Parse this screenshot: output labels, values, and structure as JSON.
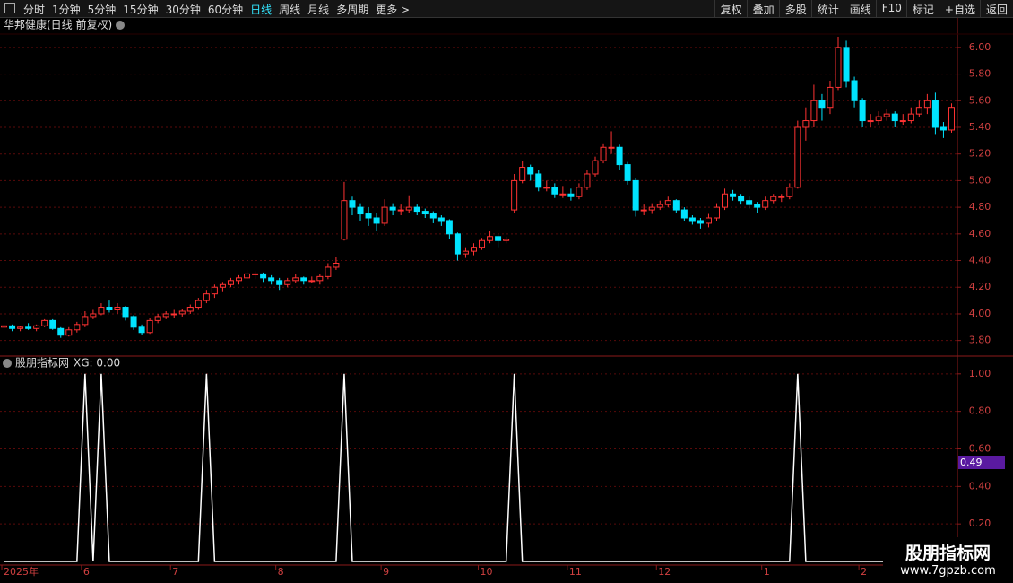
{
  "toolbar": {
    "left": [
      "分时",
      "1分钟",
      "5分钟",
      "15分钟",
      "30分钟",
      "60分钟",
      "日线",
      "周线",
      "月线",
      "多周期",
      "更多 >"
    ],
    "active": "日线",
    "right": [
      "复权",
      "叠加",
      "多股",
      "统计",
      "画线",
      "F10",
      "标记",
      "+自选",
      "返回"
    ]
  },
  "chart_data": [
    {
      "type": "candlestick",
      "title": "华邦健康(日线 前复权)",
      "up_color": "#ff3232",
      "down_color": "#00e4ff",
      "grid": true,
      "ylim": [
        3.69,
        6.1
      ],
      "yticks": [
        {
          "value": 3.8,
          "label": "3.80"
        },
        {
          "value": 4,
          "label": "4.00"
        },
        {
          "value": 4.2,
          "label": "4.20"
        },
        {
          "value": 4.4,
          "label": "4.40"
        },
        {
          "value": 4.6,
          "label": "4.60"
        },
        {
          "value": 4.8,
          "label": "4.80"
        },
        {
          "value": 5,
          "label": "5.00"
        },
        {
          "value": 5.2,
          "label": "5.20"
        },
        {
          "value": 5.4,
          "label": "5.40"
        },
        {
          "value": 5.6,
          "label": "5.60"
        },
        {
          "value": 5.8,
          "label": "5.80"
        },
        {
          "value": 6,
          "label": "6.00"
        }
      ],
      "categories": [
        "2025年",
        null,
        null,
        null,
        null,
        null,
        null,
        null,
        null,
        null,
        "6",
        null,
        null,
        null,
        null,
        null,
        null,
        null,
        null,
        null,
        null,
        "7",
        null,
        null,
        null,
        null,
        null,
        null,
        null,
        null,
        null,
        null,
        null,
        null,
        "8",
        null,
        null,
        null,
        null,
        null,
        null,
        null,
        null,
        null,
        null,
        null,
        null,
        "9",
        null,
        null,
        null,
        null,
        null,
        null,
        null,
        null,
        null,
        null,
        null,
        "10",
        null,
        null,
        null,
        null,
        null,
        null,
        null,
        null,
        null,
        null,
        "11",
        null,
        null,
        null,
        null,
        null,
        null,
        null,
        null,
        null,
        null,
        "12",
        null,
        null,
        null,
        null,
        null,
        null,
        null,
        null,
        null,
        null,
        null,
        null,
        "1",
        null,
        null,
        null,
        null,
        null,
        null,
        null,
        null,
        null,
        null,
        null,
        "2",
        null,
        null,
        null,
        null,
        null,
        null,
        null,
        null,
        null,
        null,
        null
      ],
      "candles": [
        [
          3.9,
          3.92,
          3.88,
          3.91
        ],
        [
          3.91,
          3.92,
          3.87,
          3.89
        ],
        [
          3.89,
          3.91,
          3.87,
          3.9
        ],
        [
          3.9,
          3.93,
          3.88,
          3.89
        ],
        [
          3.89,
          3.92,
          3.87,
          3.91
        ],
        [
          3.91,
          3.96,
          3.9,
          3.95
        ],
        [
          3.95,
          3.96,
          3.88,
          3.89
        ],
        [
          3.89,
          3.9,
          3.82,
          3.84
        ],
        [
          3.84,
          3.9,
          3.83,
          3.88
        ],
        [
          3.88,
          3.94,
          3.86,
          3.92
        ],
        [
          3.92,
          4.02,
          3.9,
          3.98
        ],
        [
          3.98,
          4.03,
          3.96,
          4.0
        ],
        [
          4.0,
          4.08,
          3.99,
          4.05
        ],
        [
          4.05,
          4.1,
          4.01,
          4.03
        ],
        [
          4.03,
          4.08,
          4.0,
          4.05
        ],
        [
          4.05,
          4.06,
          3.95,
          3.98
        ],
        [
          3.98,
          3.99,
          3.88,
          3.9
        ],
        [
          3.9,
          3.92,
          3.84,
          3.86
        ],
        [
          3.86,
          3.97,
          3.85,
          3.95
        ],
        [
          3.95,
          4.0,
          3.93,
          3.98
        ],
        [
          3.98,
          4.02,
          3.96,
          4.0
        ],
        [
          4.0,
          4.03,
          3.97,
          4.0
        ],
        [
          4.0,
          4.04,
          3.98,
          4.02
        ],
        [
          4.02,
          4.07,
          4.0,
          4.05
        ],
        [
          4.05,
          4.12,
          4.03,
          4.1
        ],
        [
          4.1,
          4.18,
          4.08,
          4.15
        ],
        [
          4.15,
          4.22,
          4.12,
          4.2
        ],
        [
          4.2,
          4.24,
          4.17,
          4.22
        ],
        [
          4.22,
          4.27,
          4.2,
          4.25
        ],
        [
          4.25,
          4.29,
          4.22,
          4.27
        ],
        [
          4.27,
          4.33,
          4.26,
          4.3
        ],
        [
          4.3,
          4.32,
          4.26,
          4.3
        ],
        [
          4.3,
          4.31,
          4.24,
          4.27
        ],
        [
          4.27,
          4.29,
          4.22,
          4.25
        ],
        [
          4.25,
          4.27,
          4.18,
          4.22
        ],
        [
          4.22,
          4.27,
          4.2,
          4.25
        ],
        [
          4.25,
          4.3,
          4.23,
          4.27
        ],
        [
          4.27,
          4.28,
          4.22,
          4.25
        ],
        [
          4.25,
          4.28,
          4.23,
          4.25
        ],
        [
          4.25,
          4.3,
          4.22,
          4.28
        ],
        [
          4.28,
          4.38,
          4.26,
          4.35
        ],
        [
          4.35,
          4.43,
          4.33,
          4.38
        ],
        [
          4.56,
          4.99,
          4.55,
          4.85
        ],
        [
          4.85,
          4.88,
          4.74,
          4.8
        ],
        [
          4.8,
          4.83,
          4.7,
          4.75
        ],
        [
          4.75,
          4.8,
          4.66,
          4.72
        ],
        [
          4.72,
          4.76,
          4.62,
          4.68
        ],
        [
          4.68,
          4.86,
          4.66,
          4.8
        ],
        [
          4.8,
          4.83,
          4.74,
          4.78
        ],
        [
          4.78,
          4.82,
          4.74,
          4.78
        ],
        [
          4.78,
          4.89,
          4.76,
          4.8
        ],
        [
          4.8,
          4.82,
          4.74,
          4.77
        ],
        [
          4.77,
          4.79,
          4.72,
          4.75
        ],
        [
          4.75,
          4.77,
          4.68,
          4.72
        ],
        [
          4.72,
          4.74,
          4.66,
          4.7
        ],
        [
          4.7,
          4.71,
          4.56,
          4.6
        ],
        [
          4.6,
          4.61,
          4.4,
          4.45
        ],
        [
          4.45,
          4.5,
          4.42,
          4.47
        ],
        [
          4.47,
          4.53,
          4.44,
          4.5
        ],
        [
          4.5,
          4.57,
          4.48,
          4.55
        ],
        [
          4.55,
          4.62,
          4.53,
          4.58
        ],
        [
          4.58,
          4.59,
          4.5,
          4.55
        ],
        [
          4.55,
          4.58,
          4.53,
          4.56
        ],
        [
          4.78,
          5.05,
          4.76,
          5.0
        ],
        [
          5.0,
          5.15,
          4.98,
          5.1
        ],
        [
          5.1,
          5.12,
          5.0,
          5.05
        ],
        [
          5.05,
          5.08,
          4.92,
          4.95
        ],
        [
          4.95,
          5.0,
          4.92,
          4.95
        ],
        [
          4.95,
          4.98,
          4.87,
          4.9
        ],
        [
          4.9,
          4.96,
          4.87,
          4.9
        ],
        [
          4.9,
          4.94,
          4.85,
          4.88
        ],
        [
          4.88,
          4.98,
          4.86,
          4.95
        ],
        [
          4.95,
          5.08,
          4.93,
          5.05
        ],
        [
          5.05,
          5.18,
          5.03,
          5.15
        ],
        [
          5.15,
          5.28,
          5.13,
          5.25
        ],
        [
          5.25,
          5.37,
          5.2,
          5.25
        ],
        [
          5.25,
          5.27,
          5.08,
          5.12
        ],
        [
          5.12,
          5.14,
          4.97,
          5.0
        ],
        [
          5.0,
          5.02,
          4.73,
          4.78
        ],
        [
          4.78,
          4.82,
          4.74,
          4.78
        ],
        [
          4.78,
          4.83,
          4.75,
          4.8
        ],
        [
          4.8,
          4.85,
          4.78,
          4.82
        ],
        [
          4.82,
          4.88,
          4.8,
          4.85
        ],
        [
          4.85,
          4.86,
          4.76,
          4.78
        ],
        [
          4.78,
          4.8,
          4.7,
          4.72
        ],
        [
          4.72,
          4.74,
          4.67,
          4.7
        ],
        [
          4.7,
          4.72,
          4.64,
          4.68
        ],
        [
          4.68,
          4.75,
          4.65,
          4.72
        ],
        [
          4.72,
          4.83,
          4.7,
          4.8
        ],
        [
          4.8,
          4.94,
          4.78,
          4.9
        ],
        [
          4.9,
          4.93,
          4.85,
          4.88
        ],
        [
          4.88,
          4.9,
          4.82,
          4.85
        ],
        [
          4.85,
          4.88,
          4.79,
          4.82
        ],
        [
          4.82,
          4.84,
          4.76,
          4.8
        ],
        [
          4.8,
          4.88,
          4.78,
          4.85
        ],
        [
          4.85,
          4.9,
          4.83,
          4.88
        ],
        [
          4.88,
          4.9,
          4.84,
          4.88
        ],
        [
          4.88,
          4.98,
          4.86,
          4.95
        ],
        [
          4.95,
          5.45,
          4.94,
          5.4
        ],
        [
          5.4,
          5.55,
          5.3,
          5.45
        ],
        [
          5.45,
          5.72,
          5.4,
          5.6
        ],
        [
          5.6,
          5.65,
          5.45,
          5.55
        ],
        [
          5.55,
          5.75,
          5.5,
          5.7
        ],
        [
          5.7,
          6.08,
          5.68,
          6.0
        ],
        [
          6.0,
          6.05,
          5.7,
          5.75
        ],
        [
          5.75,
          5.78,
          5.55,
          5.6
        ],
        [
          5.6,
          5.62,
          5.4,
          5.45
        ],
        [
          5.45,
          5.5,
          5.4,
          5.45
        ],
        [
          5.45,
          5.52,
          5.42,
          5.48
        ],
        [
          5.48,
          5.54,
          5.45,
          5.5
        ],
        [
          5.5,
          5.52,
          5.4,
          5.45
        ],
        [
          5.45,
          5.5,
          5.42,
          5.45
        ],
        [
          5.45,
          5.55,
          5.43,
          5.5
        ],
        [
          5.5,
          5.6,
          5.48,
          5.55
        ],
        [
          5.55,
          5.65,
          5.5,
          5.6
        ],
        [
          5.6,
          5.66,
          5.35,
          5.4
        ],
        [
          5.4,
          5.44,
          5.32,
          5.38
        ],
        [
          5.38,
          5.58,
          5.36,
          5.55
        ]
      ]
    },
    {
      "type": "line",
      "title": "股朋指标网",
      "legend": "XG: 0.00",
      "color": "#ffffff",
      "cursor_label": "0.49",
      "grid": true,
      "ylim": [
        0,
        1.09
      ],
      "yticks": [
        {
          "value": 0.2,
          "label": "0.20"
        },
        {
          "value": 0.4,
          "label": "0.40"
        },
        {
          "value": 0.6,
          "label": "0.60"
        },
        {
          "value": 0.8,
          "label": "0.80"
        },
        {
          "value": 1,
          "label": "1.00"
        }
      ],
      "values": [
        0,
        0,
        0,
        0,
        0,
        0,
        0,
        0,
        0,
        0,
        1,
        0,
        1,
        0,
        0,
        0,
        0,
        0,
        0,
        0,
        0,
        0,
        0,
        0,
        0,
        1,
        0,
        0,
        0,
        0,
        0,
        0,
        0,
        0,
        0,
        0,
        0,
        0,
        0,
        0,
        0,
        0,
        1,
        0,
        0,
        0,
        0,
        0,
        0,
        0,
        0,
        0,
        0,
        0,
        0,
        0,
        0,
        0,
        0,
        0,
        0,
        0,
        0,
        1,
        0,
        0,
        0,
        0,
        0,
        0,
        0,
        0,
        0,
        0,
        0,
        0,
        0,
        0,
        0,
        0,
        0,
        0,
        0,
        0,
        0,
        0,
        0,
        0,
        0,
        0,
        0,
        0,
        0,
        0,
        0,
        0,
        0,
        0,
        1,
        0,
        0,
        0,
        0,
        0,
        0,
        0,
        0,
        0,
        0,
        0,
        0,
        0,
        0,
        0,
        0,
        0,
        0,
        0
      ]
    }
  ],
  "watermark": {
    "name": "股朋指标网",
    "url": "www.7gpzb.com"
  }
}
